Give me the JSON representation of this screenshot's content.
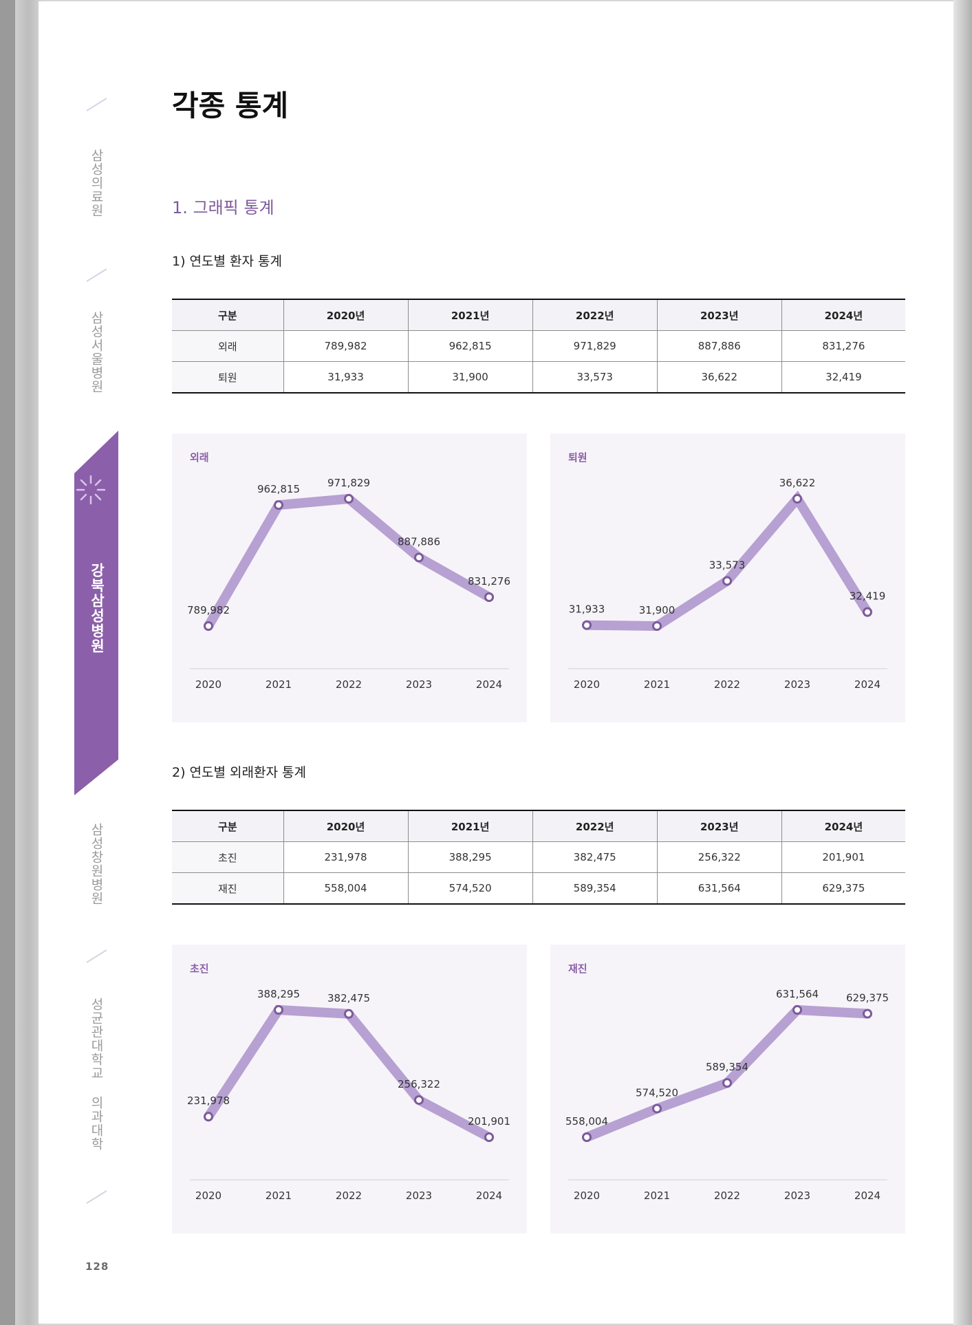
{
  "document": {
    "title": "각종 통계",
    "section": "1. 그래픽 통계",
    "page_number": "128"
  },
  "sidebar": {
    "items": [
      {
        "label": "삼성의료원",
        "active": false
      },
      {
        "label": "삼성서울병원",
        "active": false
      },
      {
        "label": "강북삼성병원",
        "active": true
      },
      {
        "label": "삼성창원병원",
        "active": false
      },
      {
        "label": "성균관대학교 의과대학",
        "active": false
      }
    ],
    "accent_color": "#8b5fa9"
  },
  "section1": {
    "title": "1) 연도별 환자 통계",
    "table": {
      "headers": [
        "구분",
        "2020년",
        "2021년",
        "2022년",
        "2023년",
        "2024년"
      ],
      "rows": [
        {
          "label": "외래",
          "values": [
            "789,982",
            "962,815",
            "971,829",
            "887,886",
            "831,276"
          ]
        },
        {
          "label": "퇴원",
          "values": [
            "31,933",
            "31,900",
            "33,573",
            "36,622",
            "32,419"
          ]
        }
      ]
    }
  },
  "section2": {
    "title": "2) 연도별 외래환자 통계",
    "table": {
      "headers": [
        "구분",
        "2020년",
        "2021년",
        "2022년",
        "2023년",
        "2024년"
      ],
      "rows": [
        {
          "label": "초진",
          "values": [
            "231,978",
            "388,295",
            "382,475",
            "256,322",
            "201,901"
          ]
        },
        {
          "label": "재진",
          "values": [
            "558,004",
            "574,520",
            "589,354",
            "631,564",
            "629,375"
          ]
        }
      ]
    }
  },
  "chart_data": [
    {
      "type": "line",
      "title": "외래",
      "x": [
        "2020",
        "2021",
        "2022",
        "2023",
        "2024"
      ],
      "series": [
        {
          "values": [
            789982,
            962815,
            971829,
            887886,
            831276
          ]
        }
      ],
      "labels": [
        "789,982",
        "962,815",
        "971,829",
        "887,886",
        "831,276"
      ],
      "grid": false,
      "color": "#b7a0d2"
    },
    {
      "type": "line",
      "title": "퇴원",
      "x": [
        "2020",
        "2021",
        "2022",
        "2023",
        "2024"
      ],
      "series": [
        {
          "values": [
            31933,
            31900,
            33573,
            36622,
            32419
          ]
        }
      ],
      "labels": [
        "31,933",
        "31,900",
        "33,573",
        "36,622",
        "32,419"
      ],
      "grid": false,
      "color": "#b7a0d2"
    },
    {
      "type": "line",
      "title": "초진",
      "x": [
        "2020",
        "2021",
        "2022",
        "2023",
        "2024"
      ],
      "series": [
        {
          "values": [
            231978,
            388295,
            382475,
            256322,
            201901
          ]
        }
      ],
      "labels": [
        "231,978",
        "388,295",
        "382,475",
        "256,322",
        "201,901"
      ],
      "grid": false,
      "color": "#b7a0d2"
    },
    {
      "type": "line",
      "title": "재진",
      "x": [
        "2020",
        "2021",
        "2022",
        "2023",
        "2024"
      ],
      "series": [
        {
          "values": [
            558004,
            574520,
            589354,
            631564,
            629375
          ]
        }
      ],
      "labels": [
        "558,004",
        "574,520",
        "589,354",
        "631,564",
        "629,375"
      ],
      "grid": false,
      "color": "#b7a0d2"
    }
  ]
}
